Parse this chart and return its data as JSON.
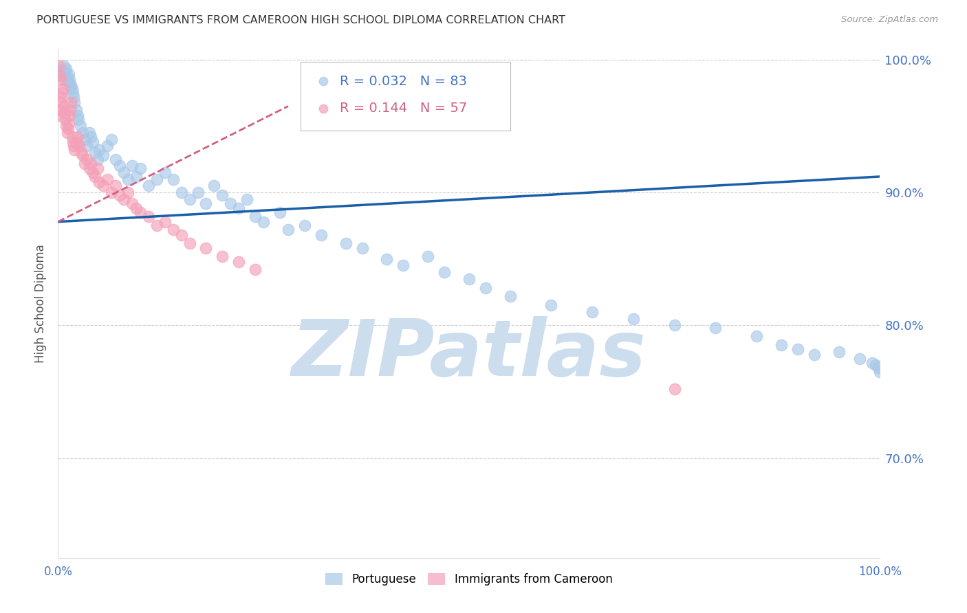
{
  "title": "PORTUGUESE VS IMMIGRANTS FROM CAMEROON HIGH SCHOOL DIPLOMA CORRELATION CHART",
  "source": "Source: ZipAtlas.com",
  "ylabel": "High School Diploma",
  "xmin": 0.0,
  "xmax": 1.0,
  "ymin": 0.625,
  "ymax": 1.008,
  "yticks": [
    0.7,
    0.8,
    0.9,
    1.0
  ],
  "ytick_labels": [
    "70.0%",
    "80.0%",
    "90.0%",
    "100.0%"
  ],
  "xticks": [
    0.0,
    0.1,
    0.2,
    0.3,
    0.4,
    0.5,
    0.6,
    0.7,
    0.8,
    0.9,
    1.0
  ],
  "xtick_labels": [
    "0.0%",
    "",
    "",
    "",
    "",
    "",
    "",
    "",
    "",
    "",
    "100.0%"
  ],
  "legend_r_blue": "R = 0.032",
  "legend_n_blue": "N = 83",
  "legend_r_pink": "R = 0.144",
  "legend_n_pink": "N = 57",
  "blue_color": "#a8c8e8",
  "pink_color": "#f4a0b8",
  "trendline_blue_color": "#1a5fa8",
  "trendline_pink_color": "#d06080",
  "watermark_color": "#ccdded",
  "watermark_text": "ZIPatlas",
  "blue_trendline_x": [
    0.0,
    1.0
  ],
  "blue_trendline_y": [
    0.878,
    0.912
  ],
  "pink_trendline_x": [
    0.0,
    0.28
  ],
  "pink_trendline_y": [
    0.878,
    0.965
  ],
  "blue_dots_x": [
    0.003,
    0.005,
    0.006,
    0.007,
    0.008,
    0.009,
    0.01,
    0.011,
    0.012,
    0.013,
    0.014,
    0.015,
    0.016,
    0.017,
    0.018,
    0.019,
    0.02,
    0.022,
    0.024,
    0.025,
    0.027,
    0.03,
    0.032,
    0.035,
    0.038,
    0.04,
    0.042,
    0.045,
    0.048,
    0.05,
    0.055,
    0.06,
    0.065,
    0.07,
    0.075,
    0.08,
    0.085,
    0.09,
    0.095,
    0.1,
    0.11,
    0.12,
    0.13,
    0.14,
    0.15,
    0.16,
    0.17,
    0.18,
    0.19,
    0.2,
    0.21,
    0.22,
    0.23,
    0.24,
    0.25,
    0.27,
    0.28,
    0.3,
    0.32,
    0.35,
    0.37,
    0.4,
    0.42,
    0.45,
    0.47,
    0.5,
    0.52,
    0.55,
    0.6,
    0.65,
    0.7,
    0.75,
    0.8,
    0.85,
    0.88,
    0.9,
    0.92,
    0.95,
    0.975,
    0.99,
    0.995,
    0.998,
    1.0
  ],
  "blue_dots_y": [
    0.99,
    0.992,
    0.988,
    0.995,
    0.985,
    0.991,
    0.993,
    0.987,
    0.983,
    0.989,
    0.985,
    0.982,
    0.98,
    0.978,
    0.975,
    0.972,
    0.968,
    0.962,
    0.958,
    0.955,
    0.95,
    0.945,
    0.94,
    0.935,
    0.945,
    0.942,
    0.938,
    0.93,
    0.925,
    0.932,
    0.928,
    0.935,
    0.94,
    0.925,
    0.92,
    0.915,
    0.91,
    0.92,
    0.912,
    0.918,
    0.905,
    0.91,
    0.915,
    0.91,
    0.9,
    0.895,
    0.9,
    0.892,
    0.905,
    0.898,
    0.892,
    0.888,
    0.895,
    0.882,
    0.878,
    0.885,
    0.872,
    0.875,
    0.868,
    0.862,
    0.858,
    0.85,
    0.845,
    0.852,
    0.84,
    0.835,
    0.828,
    0.822,
    0.815,
    0.81,
    0.805,
    0.8,
    0.798,
    0.792,
    0.785,
    0.782,
    0.778,
    0.78,
    0.775,
    0.772,
    0.77,
    0.768,
    0.765
  ],
  "pink_dots_x": [
    0.001,
    0.002,
    0.003,
    0.004,
    0.005,
    0.006,
    0.007,
    0.008,
    0.009,
    0.01,
    0.011,
    0.012,
    0.013,
    0.014,
    0.015,
    0.016,
    0.017,
    0.018,
    0.019,
    0.02,
    0.022,
    0.024,
    0.026,
    0.028,
    0.03,
    0.032,
    0.035,
    0.038,
    0.04,
    0.042,
    0.045,
    0.048,
    0.05,
    0.055,
    0.06,
    0.065,
    0.07,
    0.075,
    0.08,
    0.085,
    0.09,
    0.095,
    0.1,
    0.11,
    0.12,
    0.13,
    0.14,
    0.15,
    0.16,
    0.18,
    0.2,
    0.22,
    0.24,
    0.001,
    0.002,
    0.003,
    0.75
  ],
  "pink_dots_y": [
    0.958,
    0.962,
    0.968,
    0.972,
    0.975,
    0.978,
    0.965,
    0.96,
    0.955,
    0.95,
    0.945,
    0.948,
    0.952,
    0.958,
    0.962,
    0.968,
    0.942,
    0.938,
    0.935,
    0.932,
    0.938,
    0.942,
    0.935,
    0.93,
    0.928,
    0.922,
    0.925,
    0.918,
    0.922,
    0.915,
    0.912,
    0.918,
    0.908,
    0.905,
    0.91,
    0.9,
    0.905,
    0.898,
    0.895,
    0.9,
    0.892,
    0.888,
    0.885,
    0.882,
    0.875,
    0.878,
    0.872,
    0.868,
    0.862,
    0.858,
    0.852,
    0.848,
    0.842,
    0.995,
    0.988,
    0.985,
    0.752
  ]
}
